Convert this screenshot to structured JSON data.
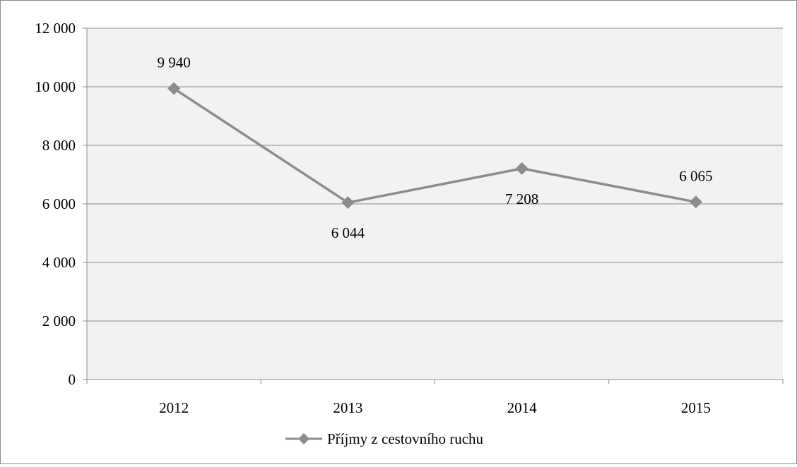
{
  "chart_data": {
    "type": "line",
    "categories": [
      "2012",
      "2013",
      "2014",
      "2015"
    ],
    "series": [
      {
        "name": "Příjmy z cestovního ruchu",
        "values": [
          9940,
          6044,
          7208,
          6065
        ],
        "color": "#8c8c8c"
      }
    ],
    "data_labels": [
      "9 940",
      "6 044",
      "7 208",
      "6 065"
    ],
    "data_label_positions": [
      "above",
      "below",
      "below",
      "above"
    ],
    "y_ticks": [
      0,
      2000,
      4000,
      6000,
      8000,
      10000,
      12000
    ],
    "y_tick_labels": [
      "0",
      "2 000",
      "4 000",
      "6 000",
      "8 000",
      "10 000",
      "12 000"
    ],
    "ylim": [
      0,
      12000
    ],
    "title": "",
    "xlabel": "",
    "ylabel": "",
    "grid": true,
    "legend_position": "bottom",
    "plot_background": "#f2f2f2",
    "gridline_color": "#8c8c8c",
    "marker": "diamond"
  }
}
